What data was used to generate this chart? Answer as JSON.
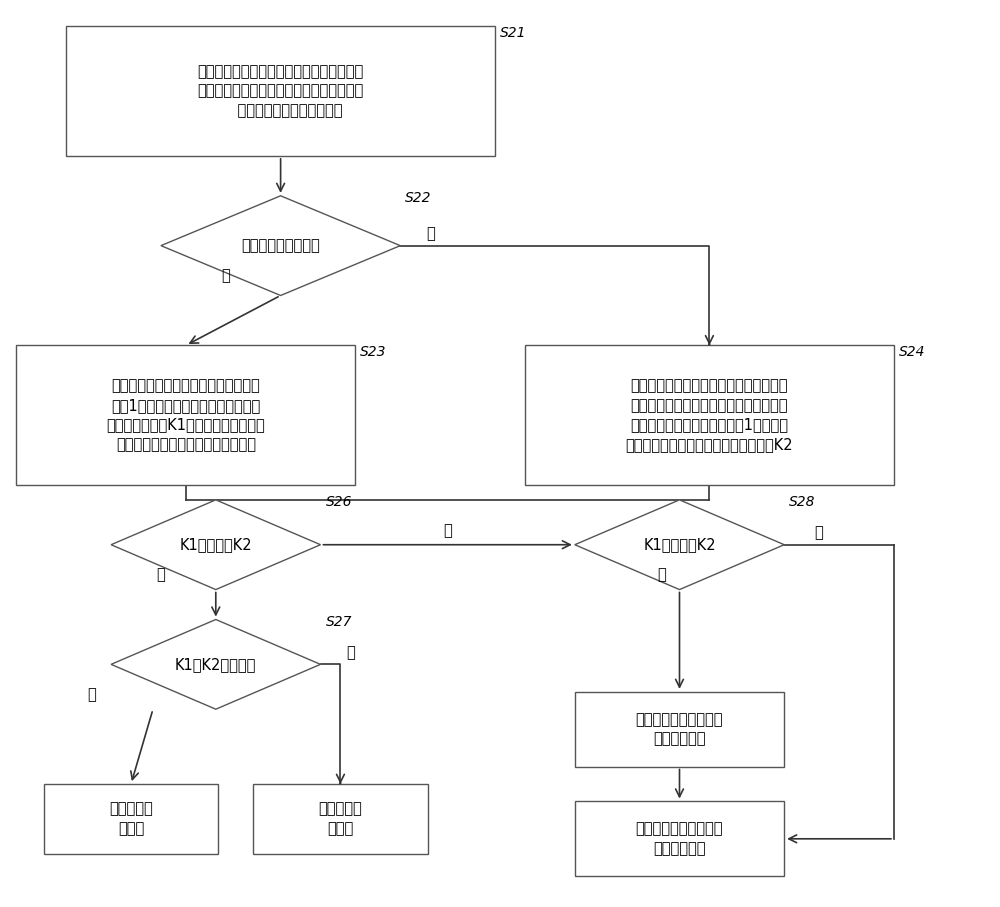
{
  "fig_width": 10.0,
  "fig_height": 9.07,
  "bg_color": "#ffffff",
  "box_edge_color": "#555555",
  "arrow_color": "#333333",
  "text_color": "#000000",
  "font_size": 10.5,
  "step_font_size": 10,
  "S21_label": "记录每一台机动车在越过停止线之前遇红灯\n的停车等待次数；其中每一机动车遇红灯的\n    停车等待次数的初始值为零",
  "S22_label": "第一方向是否为红灯",
  "S23_label": "对于第一方向，将已有机动车的停车次\n数加1，并获取第一方向上遇红灯的最\n高停车等待次数K1；对于第二方向，将\n越过停止线的机动车从记录中清除；",
  "S24_label": "对于第一方向，将越过停止线的机动车从\n记录中清除；对于第二方向，将已有机动\n车的遇红灯的停车等待次数加1，并获取\n第二方向上遇红灯的最高停车等待次数K2",
  "S26_label": "K1是否等于K2",
  "S27_label": "K1与K2是否为零",
  "S28_label": "K1是否大于K2",
  "green1_label": "增加第一方向上信号灯\n周期的绿信比",
  "green2_label": "增加第二方向上信号灯\n周期的绿信比",
  "keep1_label": "保持当前信\n号周期",
  "keep2_label": "保持当前信\n号周期",
  "yes": "是",
  "no": "否"
}
